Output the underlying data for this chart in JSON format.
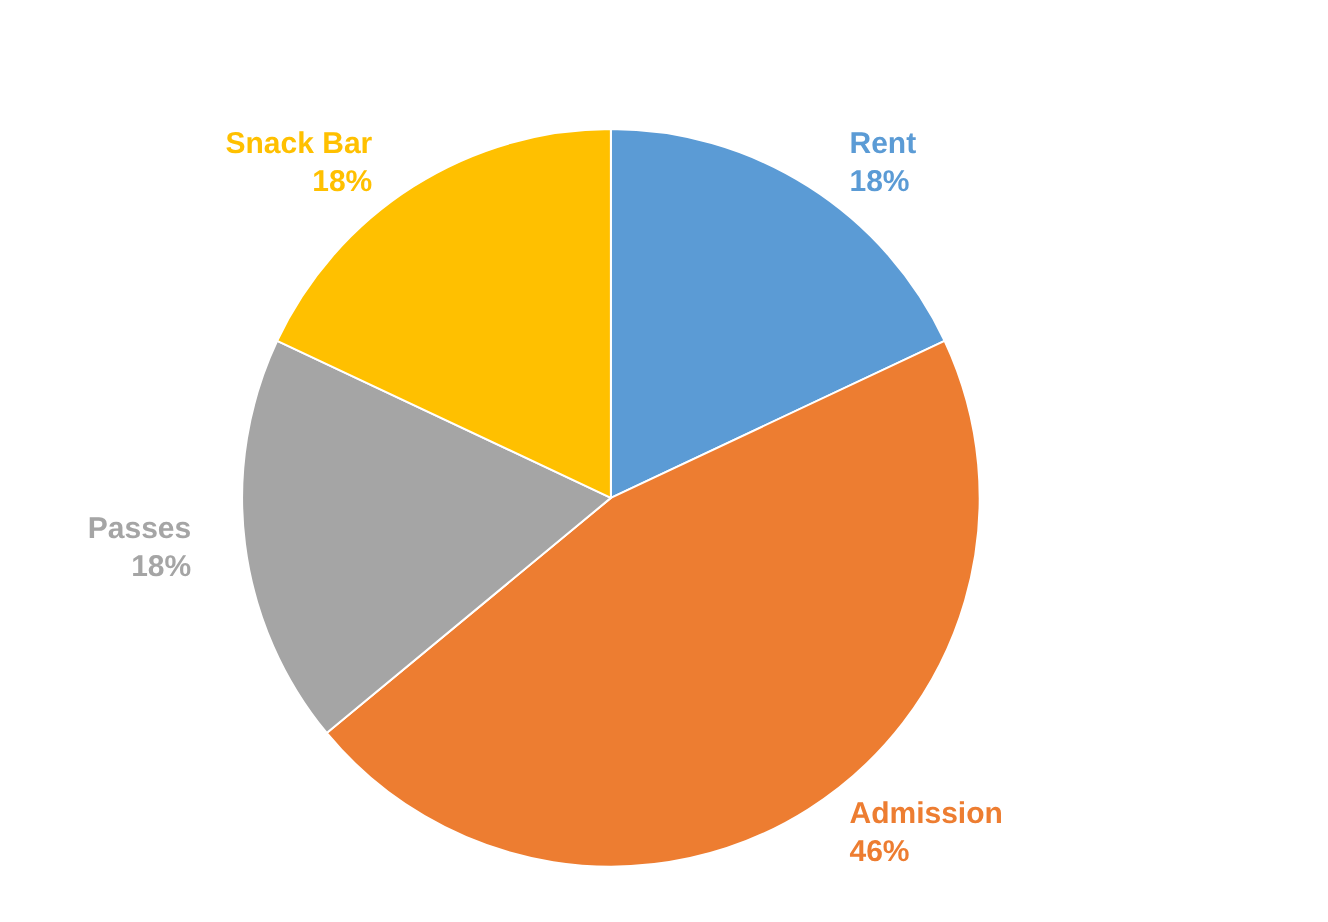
{
  "chart_data": {
    "type": "pie",
    "categories": [
      "Rent",
      "Admission",
      "Passes",
      "Snack Bar"
    ],
    "values": [
      18,
      46,
      18,
      18
    ],
    "colors": [
      "#5b9bd5",
      "#ed7d31",
      "#a5a5a5",
      "#ffc000"
    ],
    "value_labels": [
      "18%",
      "46%",
      "18%",
      "18%"
    ]
  }
}
